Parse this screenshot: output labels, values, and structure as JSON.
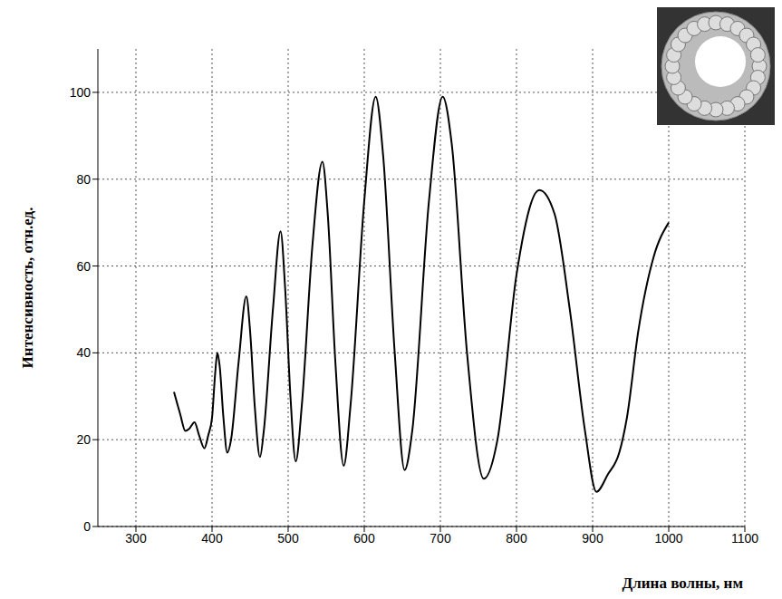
{
  "chart_data": {
    "type": "line",
    "xlabel": "Длина волны, нм",
    "ylabel": "Интенсивность, отн.ед.",
    "x": [
      350,
      358,
      365,
      370,
      377,
      383,
      390,
      395,
      400,
      404,
      407,
      410,
      415,
      420,
      425,
      435,
      445,
      450,
      456,
      463,
      468,
      480,
      490,
      496,
      503,
      510,
      518,
      532,
      545,
      552,
      562,
      573,
      582,
      600,
      615,
      625,
      640,
      653,
      663,
      685,
      703,
      715,
      735,
      757,
      775,
      800,
      830,
      850,
      870,
      890,
      905,
      920,
      935,
      945,
      960,
      980,
      1000
    ],
    "values": [
      31,
      26,
      22,
      22.5,
      24,
      21,
      18,
      21,
      25,
      35,
      40,
      37,
      25,
      17,
      20,
      38,
      53,
      45,
      28,
      16,
      22,
      50,
      68,
      55,
      30,
      15,
      28,
      65,
      84,
      72,
      38,
      14,
      28,
      75,
      99,
      85,
      40,
      13,
      22,
      75,
      99,
      88,
      40,
      11,
      20,
      58,
      77.5,
      72,
      50,
      22,
      8,
      12,
      17,
      25,
      45,
      62,
      70
    ],
    "color": "#000000",
    "xlim": [
      250,
      1100
    ],
    "ylim": [
      0,
      110
    ],
    "xticks": [
      300,
      400,
      500,
      600,
      700,
      800,
      900,
      1000,
      1100
    ],
    "yticks": [
      0,
      20,
      40,
      60,
      80,
      100
    ],
    "grid": true
  }
}
